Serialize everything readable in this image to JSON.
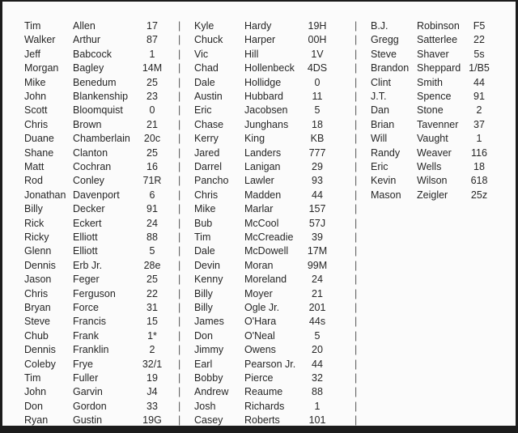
{
  "columns": [
    [
      [
        "Tim",
        "Allen",
        "17"
      ],
      [
        "Walker",
        "Arthur",
        "87"
      ],
      [
        "Jeff",
        "Babcock",
        "1"
      ],
      [
        "Morgan",
        "Bagley",
        "14M"
      ],
      [
        "Mike",
        "Benedum",
        "25"
      ],
      [
        "John",
        "Blankenship",
        "23"
      ],
      [
        "Scott",
        "Bloomquist",
        "0"
      ],
      [
        "Chris",
        "Brown",
        "21"
      ],
      [
        "Duane",
        "Chamberlain",
        "20c"
      ],
      [
        "Shane",
        "Clanton",
        "25"
      ],
      [
        "Matt",
        "Cochran",
        "16"
      ],
      [
        "Rod",
        "Conley",
        "71R"
      ],
      [
        "Jonathan",
        "Davenport",
        "6"
      ],
      [
        "Billy",
        "Decker",
        "91"
      ],
      [
        "Rick",
        "Eckert",
        "24"
      ],
      [
        "Ricky",
        "Elliott",
        "88"
      ],
      [
        "Glenn",
        "Elliott",
        "5"
      ],
      [
        "Dennis",
        "Erb Jr.",
        "28e"
      ],
      [
        "Jason",
        "Feger",
        "25"
      ],
      [
        "Chris",
        "Ferguson",
        "22"
      ],
      [
        "Bryan",
        "Force",
        "31"
      ],
      [
        "Steve",
        "Francis",
        "15"
      ],
      [
        "Chub",
        "Frank",
        "1*"
      ],
      [
        "Dennis",
        "Franklin",
        "2"
      ],
      [
        "Coleby",
        "Frye",
        "32/1"
      ],
      [
        "Tim",
        "Fuller",
        "19"
      ],
      [
        "John",
        "Garvin",
        "J4"
      ],
      [
        "Don",
        "Gordon",
        "33"
      ],
      [
        "Ryan",
        "Gustin",
        "19G"
      ]
    ],
    [
      [
        "Kyle",
        "Hardy",
        "19H"
      ],
      [
        "Chuck",
        "Harper",
        "00H"
      ],
      [
        "Vic",
        "Hill",
        "1V"
      ],
      [
        "Chad",
        "Hollenbeck",
        "4DS"
      ],
      [
        "Dale",
        "Hollidge",
        "0"
      ],
      [
        "Austin",
        "Hubbard",
        "11"
      ],
      [
        "Eric",
        "Jacobsen",
        "5"
      ],
      [
        "Chase",
        "Junghans",
        "18"
      ],
      [
        "Kerry",
        "King",
        "KB"
      ],
      [
        "Jared",
        "Landers",
        "777"
      ],
      [
        "Darrel",
        "Lanigan",
        "29"
      ],
      [
        "Pancho",
        "Lawler",
        "93"
      ],
      [
        "Chris",
        "Madden",
        "44"
      ],
      [
        "Mike",
        "Marlar",
        "157"
      ],
      [
        "Bub",
        "McCool",
        "57J"
      ],
      [
        "Tim",
        "McCreadie",
        "39"
      ],
      [
        "Dale",
        "McDowell",
        "17M"
      ],
      [
        "Devin",
        "Moran",
        "99M"
      ],
      [
        "Kenny",
        "Moreland",
        "24"
      ],
      [
        "Billy",
        "Moyer",
        "21"
      ],
      [
        "Billy",
        "Ogle Jr.",
        "201"
      ],
      [
        "James",
        "O'Hara",
        "44s"
      ],
      [
        "Don",
        "O'Neal",
        "5"
      ],
      [
        "Jimmy",
        "Owens",
        "20"
      ],
      [
        "Earl",
        "Pearson Jr.",
        "44"
      ],
      [
        "Bobby",
        "Pierce",
        "32"
      ],
      [
        "Andrew",
        "Reaume",
        "88"
      ],
      [
        "Josh",
        "Richards",
        "1"
      ],
      [
        "Casey",
        "Roberts",
        "101"
      ]
    ],
    [
      [
        "B.J.",
        "Robinson",
        "F5"
      ],
      [
        "Gregg",
        "Satterlee",
        "22"
      ],
      [
        "Steve",
        "Shaver",
        "5s"
      ],
      [
        "Brandon",
        "Sheppard",
        "1/B5"
      ],
      [
        "Clint",
        "Smith",
        "44"
      ],
      [
        "J.T.",
        "Spence",
        "91"
      ],
      [
        "Dan",
        "Stone",
        "2"
      ],
      [
        "Brian",
        "Tavenner",
        "37"
      ],
      [
        "Will",
        "Vaught",
        "1"
      ],
      [
        "Randy",
        "Weaver",
        "116"
      ],
      [
        "Eric",
        "Wells",
        "18"
      ],
      [
        "Kevin",
        "Wilson",
        "618"
      ],
      [
        "Mason",
        "Zeigler",
        "25z"
      ]
    ]
  ],
  "separator": "|"
}
